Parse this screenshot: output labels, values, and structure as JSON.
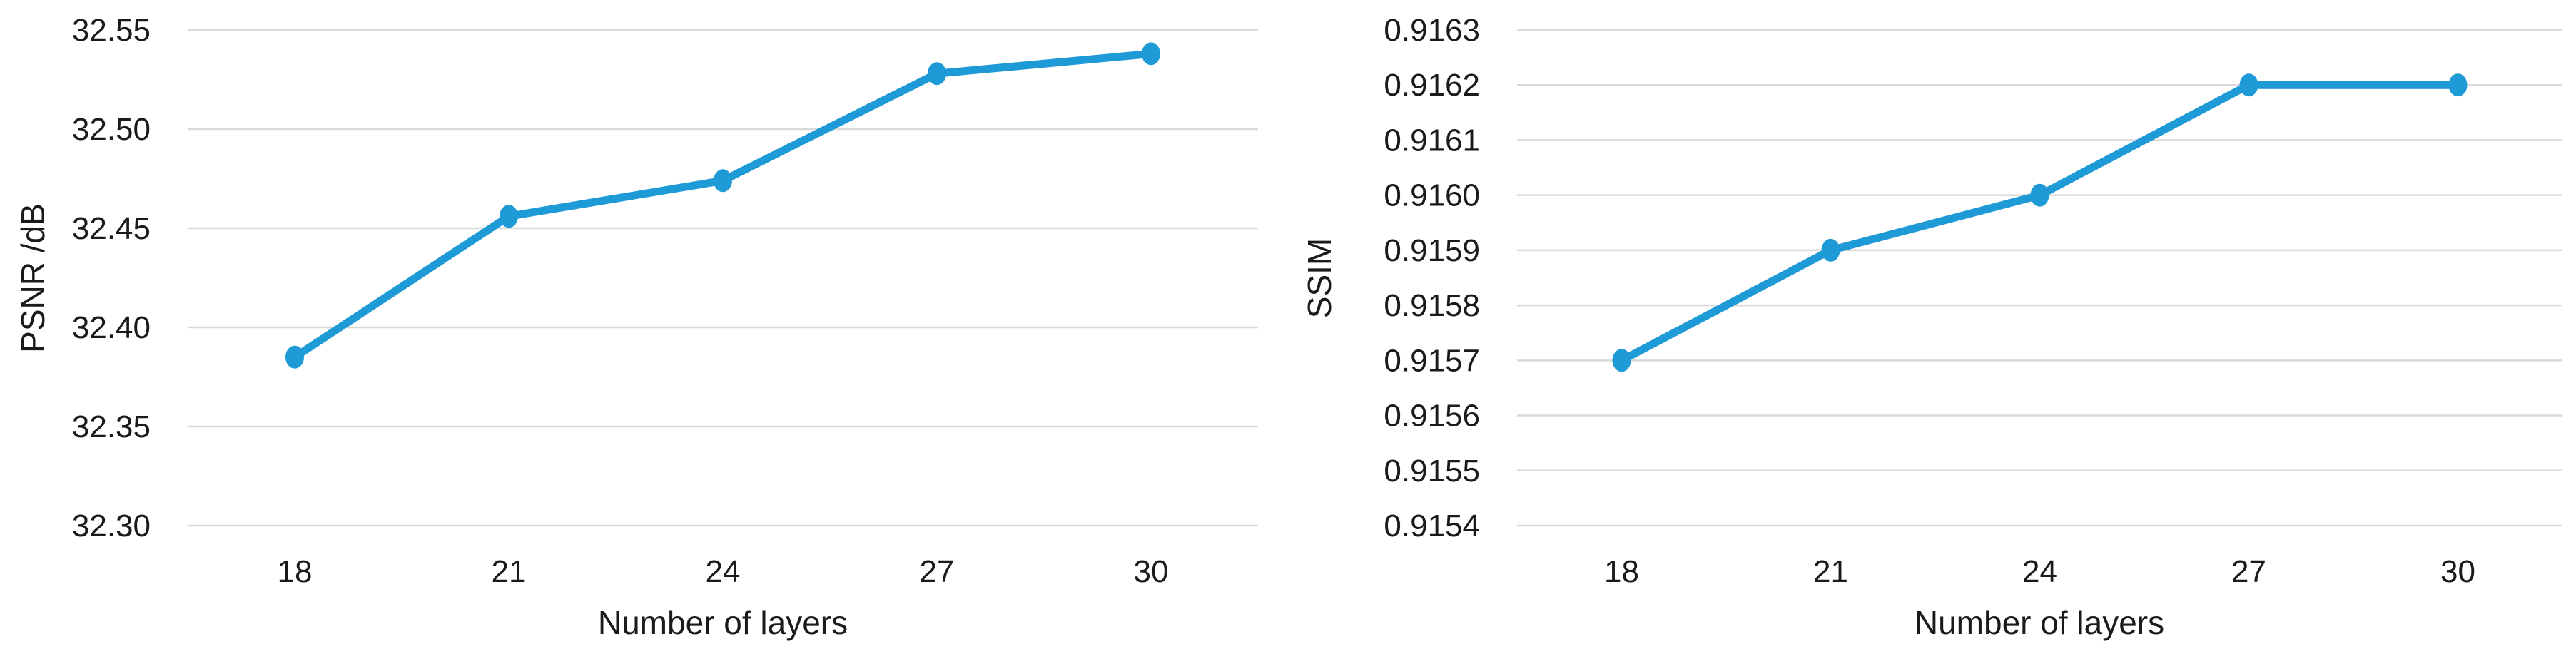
{
  "page": {
    "background": "#ffffff",
    "text_color": "#1a1a1a",
    "grid_color": "#d9d9d9"
  },
  "chart_data": [
    {
      "type": "line",
      "title": "",
      "xlabel": "Number of layers",
      "ylabel": "PSNR /dB",
      "categories": [
        "18",
        "21",
        "24",
        "27",
        "30"
      ],
      "series": [
        {
          "name": "PSNR",
          "values": [
            32.385,
            32.456,
            32.474,
            32.528,
            32.538
          ]
        }
      ],
      "ylim": [
        32.3,
        32.55
      ],
      "yticks": [
        {
          "value": 32.55,
          "label": "32.55"
        },
        {
          "value": 32.5,
          "label": "32.50"
        },
        {
          "value": 32.45,
          "label": "32.45"
        },
        {
          "value": 32.4,
          "label": "32.40"
        },
        {
          "value": 32.35,
          "label": "32.35"
        },
        {
          "value": 32.3,
          "label": "32.30"
        }
      ],
      "grid": true,
      "legend": "none",
      "line_color": "#1e9ad6",
      "marker": "circle"
    },
    {
      "type": "line",
      "title": "",
      "xlabel": "Number of layers",
      "ylabel": "SSIM",
      "categories": [
        "18",
        "21",
        "24",
        "27",
        "30"
      ],
      "series": [
        {
          "name": "SSIM",
          "values": [
            0.9157,
            0.9159,
            0.916,
            0.9162,
            0.9162
          ]
        }
      ],
      "ylim": [
        0.9154,
        0.9163
      ],
      "yticks": [
        {
          "value": 0.9163,
          "label": "0.9163"
        },
        {
          "value": 0.9162,
          "label": "0.9162"
        },
        {
          "value": 0.9161,
          "label": "0.9161"
        },
        {
          "value": 0.916,
          "label": "0.9160"
        },
        {
          "value": 0.9159,
          "label": "0.9159"
        },
        {
          "value": 0.9158,
          "label": "0.9158"
        },
        {
          "value": 0.9157,
          "label": "0.9157"
        },
        {
          "value": 0.9156,
          "label": "0.9156"
        },
        {
          "value": 0.9155,
          "label": "0.9155"
        },
        {
          "value": 0.9154,
          "label": "0.9154"
        }
      ],
      "grid": true,
      "legend": "none",
      "line_color": "#1e9ad6",
      "marker": "circle"
    }
  ]
}
